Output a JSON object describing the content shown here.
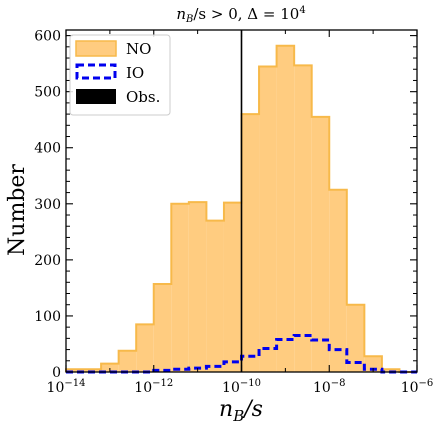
{
  "chart_data": {
    "type": "histogram",
    "title": "n_B/s > 0, Δ = 10^4",
    "title_parts": {
      "lhs": "n",
      "sub": "B",
      "mid": "/s > 0, Δ = 10",
      "sup": "4"
    },
    "xlabel": "n_B/s",
    "xlabel_parts": {
      "base": "n",
      "sub": "B",
      "rest": "/s"
    },
    "ylabel": "Number",
    "x_scale": "log",
    "xlim": [
      1e-14,
      1e-06
    ],
    "ylim": [
      0,
      610
    ],
    "x_ticks": [
      {
        "exp": "-14",
        "value": 1e-14
      },
      {
        "exp": "-12",
        "value": 1e-12
      },
      {
        "exp": "-10",
        "value": 1e-10
      },
      {
        "exp": "-8",
        "value": 1e-08
      },
      {
        "exp": "-6",
        "value": 1e-06
      }
    ],
    "y_ticks": [
      0,
      100,
      200,
      300,
      400,
      500,
      600
    ],
    "bin_edges_log10": [
      -14,
      -13.6,
      -13.2,
      -12.8,
      -12.4,
      -12,
      -11.6,
      -11.2,
      -10.8,
      -10.4,
      -10,
      -9.6,
      -9.2,
      -8.8,
      -8.4,
      -8,
      -7.6,
      -7.2,
      -6.8,
      -6.4,
      -6
    ],
    "series": [
      {
        "name": "NO",
        "style": "filled",
        "color": "#FFCC80",
        "edge_color": "#F7B94A",
        "counts": [
          5,
          5,
          15,
          38,
          85,
          157,
          300,
          303,
          270,
          302,
          460,
          545,
          582,
          547,
          455,
          325,
          120,
          28,
          5,
          0
        ]
      },
      {
        "name": "IO",
        "style": "dashed-step",
        "color": "#0000EE",
        "counts": [
          0,
          0,
          0,
          0,
          0,
          3,
          5,
          7,
          10,
          18,
          28,
          42,
          58,
          65,
          57,
          40,
          17,
          5,
          0,
          0
        ]
      }
    ],
    "observed": {
      "name": "Obs.",
      "value": 1e-10,
      "color": "#000000"
    },
    "legend_position": "top-left"
  }
}
